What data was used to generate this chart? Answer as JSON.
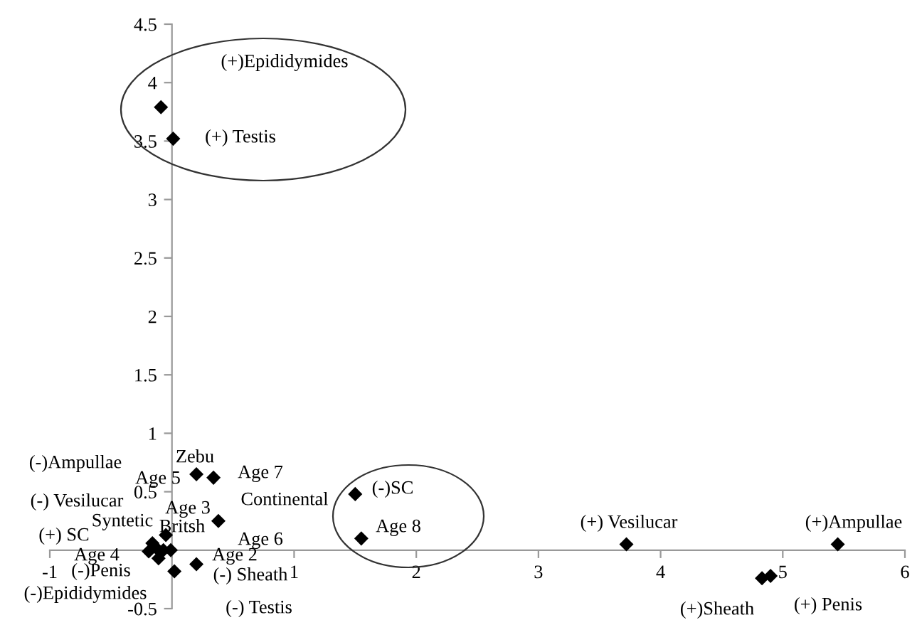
{
  "chart_data": {
    "type": "scatter",
    "marker": "diamond",
    "grid": false,
    "legend": false,
    "xlim": [
      -1,
      6
    ],
    "ylim": [
      -0.5,
      4.5
    ],
    "xticks": [
      -1,
      {
        "value": 0,
        "label": null
      },
      1,
      2,
      3,
      4,
      5,
      6
    ],
    "yticks": [
      -0.5,
      {
        "value": 0,
        "label": null
      },
      0.5,
      1,
      1.5,
      2,
      2.5,
      3,
      3.5,
      4,
      4.5
    ],
    "series": [
      {
        "color": "#000000",
        "x": [
          -0.09,
          0.01,
          0.2,
          0.34,
          0.38,
          -0.05,
          -0.16,
          -0.13,
          -0.19,
          -0.07,
          -0.01,
          -0.11,
          0.02,
          0.2,
          1.5,
          1.55,
          3.72,
          5.45,
          4.83,
          4.9
        ],
        "values": [
          3.79,
          3.52,
          0.65,
          0.62,
          0.25,
          0.13,
          0.06,
          0.02,
          -0.01,
          0.0,
          0.0,
          -0.07,
          -0.18,
          -0.12,
          0.48,
          0.1,
          0.05,
          0.05,
          -0.24,
          -0.22
        ]
      }
    ],
    "annotations": [
      "(+)Epididymides",
      "(+) Testis",
      "Zebu",
      "Age 5",
      "Age 7",
      "Continental",
      "(-)Ampullae",
      "(-) Vesilucar",
      "Age 3",
      "Syntetic",
      "Britsh",
      "(+) SC",
      "Age 6",
      "Age 4",
      "Age 2",
      "(-)Penis",
      "(-)Epididymides",
      "(-) Sheath",
      "(-) Testis",
      "(-)SC",
      "Age 8",
      "(+) Vesilucar",
      "(+)Ampullae",
      "(+)Sheath",
      "(+) Penis"
    ]
  }
}
